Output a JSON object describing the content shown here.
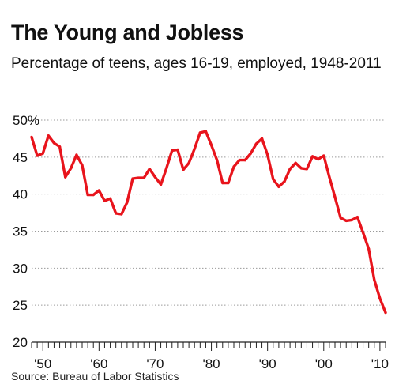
{
  "header": {
    "title": "The Young and Jobless",
    "subtitle": "Percentage of teens, ages 16-19, employed, 1948-2011"
  },
  "source": "Source: Bureau of Labor Statistics",
  "colors": {
    "line": "#e8141c",
    "grid": "#9a9a9a",
    "axis": "#222222"
  },
  "chart_data": {
    "type": "line",
    "title": "The Young and Jobless",
    "subtitle": "Percentage of teens, ages 16-19, employed, 1948-2011",
    "xlabel": "",
    "ylabel": "",
    "ylim": [
      20,
      50
    ],
    "xlim": [
      1948,
      2011
    ],
    "y_ticks": [
      20,
      25,
      30,
      35,
      40,
      45,
      50
    ],
    "y_tick_labels": [
      "20",
      "25",
      "30",
      "35",
      "40",
      "45",
      "50%"
    ],
    "x_ticks": [
      1950,
      1960,
      1970,
      1980,
      1990,
      2000,
      2010
    ],
    "x_tick_labels": [
      "'50",
      "'60",
      "'70",
      "'80",
      "'90",
      "'00",
      "'10"
    ],
    "grid": "horizontal dotted",
    "x": [
      1948,
      1949,
      1950,
      1951,
      1952,
      1953,
      1954,
      1955,
      1956,
      1957,
      1958,
      1959,
      1960,
      1961,
      1962,
      1963,
      1964,
      1965,
      1966,
      1967,
      1968,
      1969,
      1970,
      1971,
      1972,
      1973,
      1974,
      1975,
      1976,
      1977,
      1978,
      1979,
      1980,
      1981,
      1982,
      1983,
      1984,
      1985,
      1986,
      1987,
      1988,
      1989,
      1990,
      1991,
      1992,
      1993,
      1994,
      1995,
      1996,
      1997,
      1998,
      1999,
      2000,
      2001,
      2002,
      2003,
      2004,
      2005,
      2006,
      2007,
      2008,
      2009,
      2010,
      2011
    ],
    "series": [
      {
        "values": [
          47.7,
          45.2,
          45.5,
          47.9,
          46.9,
          46.4,
          42.3,
          43.5,
          45.3,
          43.9,
          39.9,
          39.9,
          40.5,
          39.1,
          39.4,
          37.4,
          37.3,
          38.9,
          42.1,
          42.2,
          42.2,
          43.4,
          42.3,
          41.3,
          43.5,
          45.9,
          46.0,
          43.3,
          44.2,
          46.1,
          48.3,
          48.5,
          46.6,
          44.6,
          41.5,
          41.5,
          43.7,
          44.6,
          44.6,
          45.5,
          46.8,
          47.5,
          45.3,
          42.0,
          41.0,
          41.7,
          43.4,
          44.2,
          43.5,
          43.4,
          45.1,
          44.7,
          45.2,
          42.3,
          39.6,
          36.8,
          36.4,
          36.5,
          36.9,
          34.8,
          32.6,
          28.4,
          25.9,
          24.0
        ]
      }
    ]
  }
}
